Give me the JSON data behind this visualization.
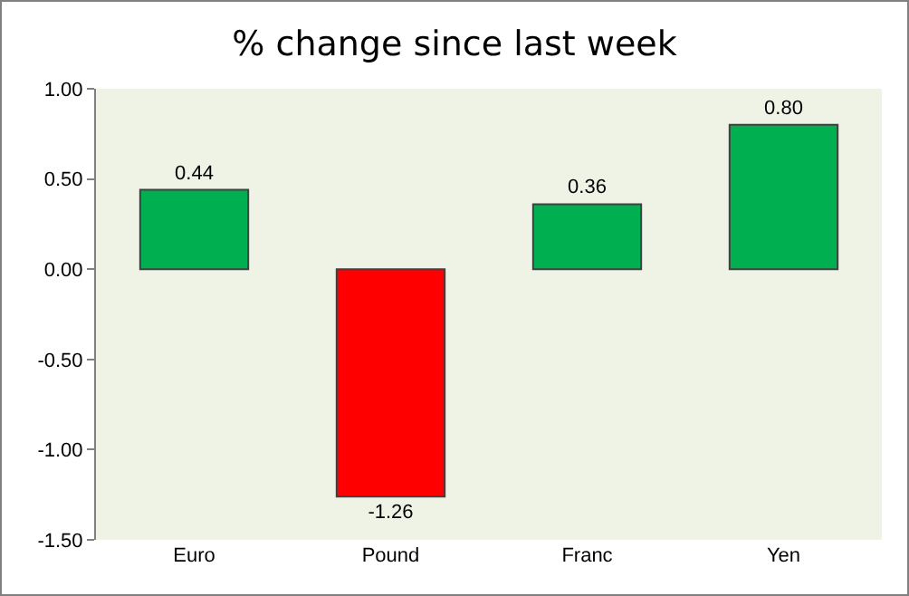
{
  "chart_data": {
    "type": "bar",
    "title": "% change since last week",
    "categories": [
      "Euro",
      "Pound",
      "Franc",
      "Yen"
    ],
    "values": [
      0.44,
      -1.26,
      0.36,
      0.8
    ],
    "colors": [
      "#00b050",
      "#ff0000",
      "#00b050",
      "#00b050"
    ],
    "value_labels": [
      "0.44",
      "-1.26",
      "0.36",
      "0.80"
    ],
    "ylim": [
      -1.5,
      1.0
    ],
    "yticks": [
      {
        "value": -1.5,
        "label": "-1.50"
      },
      {
        "value": -1.0,
        "label": "-1.00"
      },
      {
        "value": -0.5,
        "label": "-0.50"
      },
      {
        "value": 0,
        "label": "0.00"
      },
      {
        "value": 0.5,
        "label": "0.50"
      },
      {
        "value": 1.0,
        "label": "1.00"
      }
    ],
    "grid": false,
    "legend": false
  }
}
